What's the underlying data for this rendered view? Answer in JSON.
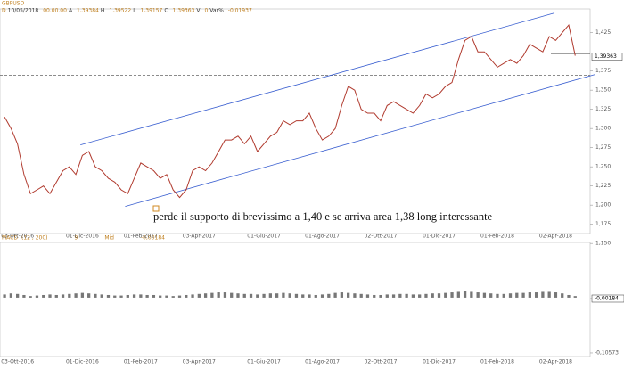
{
  "chart_data": [
    {
      "type": "line",
      "title": "GBPUSD",
      "header": [
        "D",
        "10/05/2018",
        "00.00.00",
        "A",
        "1,39384",
        "H",
        "1,39522",
        "L",
        "1,39157",
        "C",
        "1,39363",
        "V",
        "0",
        "Var%",
        "-0,01937"
      ],
      "annotation": "perde il supporto di brevissimo a 1,40 e se arriva area 1,38 long interessante",
      "categories": [
        null,
        null,
        "03-Ott-2016",
        null,
        null,
        null,
        null,
        null,
        null,
        null,
        null,
        null,
        "01-Dic-2016",
        null,
        null,
        null,
        null,
        null,
        null,
        null,
        null,
        "01-Feb-2017",
        null,
        null,
        null,
        null,
        null,
        null,
        null,
        null,
        "03-Apr-2017",
        null,
        null,
        null,
        null,
        null,
        null,
        null,
        null,
        null,
        "01-Giu-2017",
        null,
        null,
        null,
        null,
        null,
        null,
        null,
        null,
        "01-Ago-2017",
        null,
        null,
        null,
        null,
        null,
        null,
        null,
        null,
        "02-Ott-2017",
        null,
        null,
        null,
        null,
        null,
        null,
        null,
        null,
        "01-Dic-2017",
        null,
        null,
        null,
        null,
        null,
        null,
        null,
        null,
        "01-Feb-2018",
        null,
        null,
        null,
        null,
        null,
        null,
        null,
        null,
        "02-Apr-2018",
        null,
        null,
        null
      ],
      "values": [
        1.315,
        1.3,
        1.28,
        1.24,
        1.215,
        1.22,
        1.225,
        1.215,
        1.23,
        1.245,
        1.25,
        1.24,
        1.265,
        1.27,
        1.25,
        1.245,
        1.235,
        1.23,
        1.22,
        1.215,
        1.235,
        1.255,
        1.25,
        1.245,
        1.235,
        1.24,
        1.22,
        1.21,
        1.22,
        1.245,
        1.25,
        1.245,
        1.255,
        1.27,
        1.285,
        1.285,
        1.29,
        1.28,
        1.29,
        1.27,
        1.28,
        1.29,
        1.295,
        1.31,
        1.305,
        1.31,
        1.31,
        1.32,
        1.3,
        1.285,
        1.29,
        1.3,
        1.33,
        1.355,
        1.35,
        1.325,
        1.32,
        1.32,
        1.31,
        1.33,
        1.335,
        1.33,
        1.325,
        1.32,
        1.33,
        1.345,
        1.34,
        1.345,
        1.355,
        1.36,
        1.39,
        1.415,
        1.42,
        1.4,
        1.4,
        1.39,
        1.38,
        1.385,
        1.39,
        1.385,
        1.395,
        1.41,
        1.405,
        1.4,
        1.42,
        1.415,
        1.425,
        1.435,
        1.395
      ],
      "color": "#b03a2e",
      "last_price": {
        "value": 1.39363,
        "label": "1,39363"
      },
      "reference_level": 1.3692,
      "trendlines": [
        {
          "color": "#3a5fd0",
          "points": [
            [
              11.7,
              1.2785
            ],
            [
              84.8,
              1.4506
            ]
          ]
        },
        {
          "color": "#3a5fd0",
          "points": [
            [
              18.6,
              1.1983
            ],
            [
              91,
              1.3703
            ]
          ]
        }
      ],
      "ylim": [
        1.163,
        1.456
      ],
      "yticks": [
        {
          "value": 1.425,
          "label": "1,425"
        },
        {
          "value": 1.375,
          "label": "1,375"
        },
        {
          "value": 1.35,
          "label": "1,350"
        },
        {
          "value": 1.325,
          "label": "1,325"
        },
        {
          "value": 1.3,
          "label": "1,300"
        },
        {
          "value": 1.275,
          "label": "1,275"
        },
        {
          "value": 1.25,
          "label": "1,250"
        },
        {
          "value": 1.225,
          "label": "1,225"
        },
        {
          "value": 1.2,
          "label": "1,200"
        },
        {
          "value": 1.175,
          "label": "1,175"
        },
        {
          "value": 1.15,
          "label": "1,150"
        }
      ]
    },
    {
      "type": "bar",
      "title": "MACD",
      "params": [
        "(12 , 200)",
        "9",
        "Mid",
        "-0,00184"
      ],
      "values": [
        0.006,
        0.008,
        0.007,
        0.005,
        0.003,
        0.004,
        0.005,
        0.006,
        0.005,
        0.006,
        0.007,
        0.008,
        0.009,
        0.008,
        0.007,
        0.006,
        0.005,
        0.004,
        0.004,
        0.005,
        0.006,
        0.006,
        0.005,
        0.005,
        0.004,
        0.004,
        0.003,
        0.004,
        0.005,
        0.006,
        0.007,
        0.008,
        0.009,
        0.01,
        0.01,
        0.009,
        0.008,
        0.007,
        0.007,
        0.006,
        0.007,
        0.008,
        0.008,
        0.009,
        0.008,
        0.007,
        0.006,
        0.006,
        0.005,
        0.006,
        0.007,
        0.009,
        0.01,
        0.009,
        0.008,
        0.007,
        0.006,
        0.005,
        0.005,
        0.006,
        0.006,
        0.007,
        0.007,
        0.006,
        0.006,
        0.007,
        0.008,
        0.008,
        0.009,
        0.01,
        0.011,
        0.012,
        0.011,
        0.01,
        0.009,
        0.008,
        0.007,
        0.007,
        0.008,
        0.009,
        0.009,
        0.01,
        0.01,
        0.011,
        0.011,
        0.01,
        0.008,
        0.005,
        0.003
      ],
      "color": "#777777",
      "ylim": [
        -0.1126,
        0.1055
      ],
      "yticks": [
        {
          "value": -0.00184,
          "label": "-0,00184"
        },
        {
          "value": -0.10573,
          "label": "-0,10573"
        }
      ]
    }
  ]
}
